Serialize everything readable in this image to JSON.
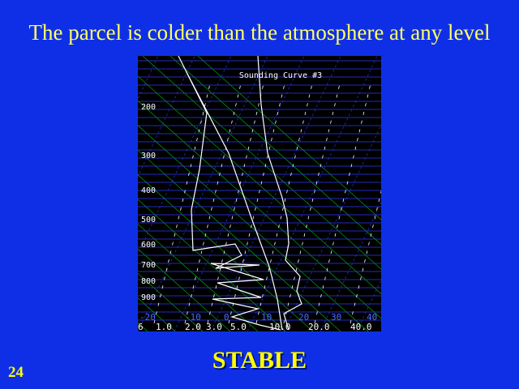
{
  "slide": {
    "title": "The parcel is colder than the atmosphere at any level",
    "conclusion": "STABLE",
    "slide_number": "24"
  },
  "colors": {
    "background": "#0f2fe6",
    "title_text": "#ffff66",
    "chart_background": "#000000",
    "isobars": "#2a3cff",
    "isotherms": "#2a3cff",
    "dry_adiabats": "#00a800",
    "mixing_ratio_lines": "#ffffff",
    "sounding_curves": "#ffffff"
  },
  "diagram": {
    "title": "Sounding Curve #3",
    "pressure_labels": [
      "200",
      "300",
      "400",
      "500",
      "600",
      "700",
      "800",
      "900"
    ],
    "temperature_labels": [
      "-20",
      "-10",
      "0",
      "10",
      "20",
      "30",
      "40"
    ],
    "mixing_ratio_labels": [
      "6",
      "1.0",
      "2.0",
      "3.0",
      "5.0",
      "10.0",
      "20.0",
      "40.0"
    ]
  }
}
